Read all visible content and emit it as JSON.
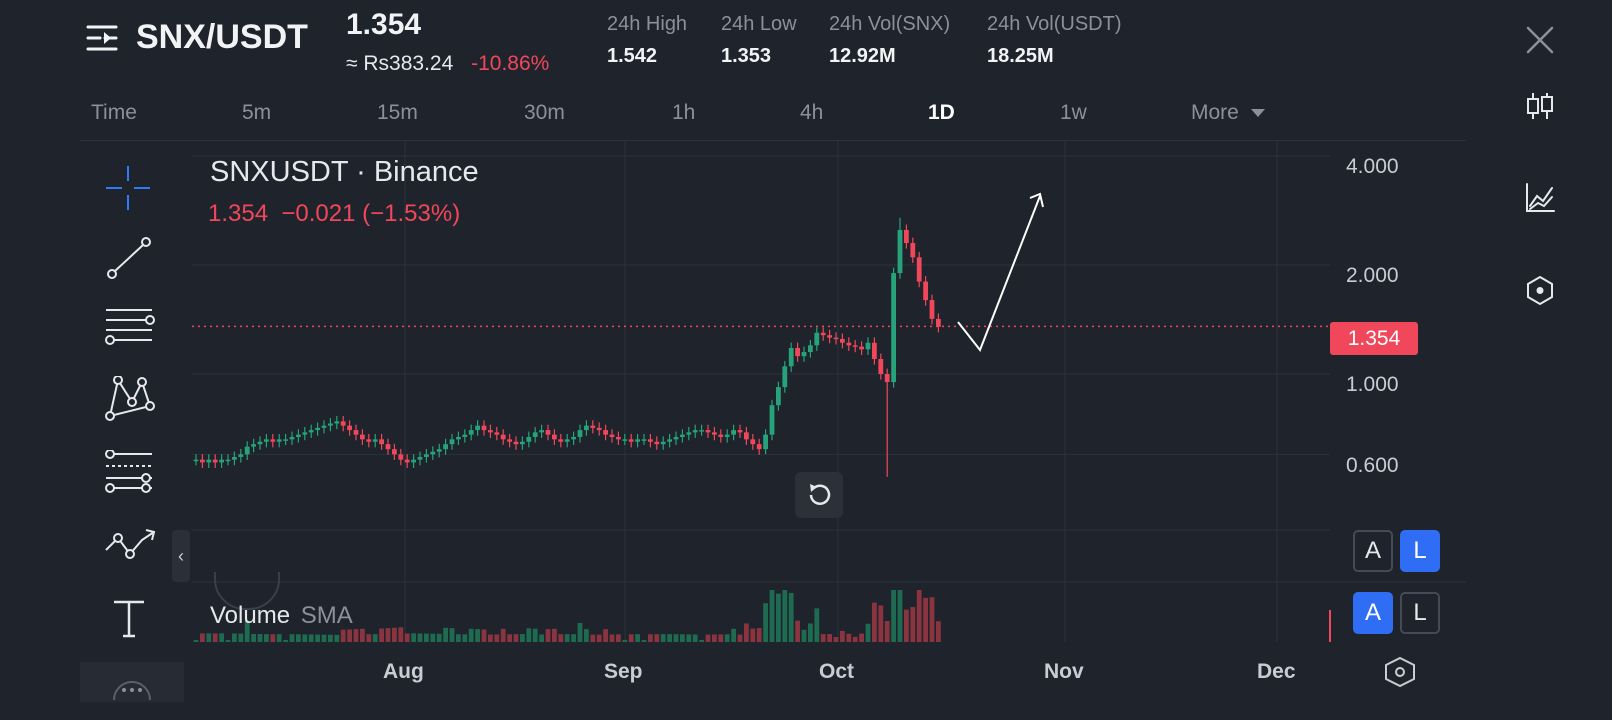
{
  "header": {
    "pair": "SNX/USDT",
    "price": "1.354",
    "fiat": "≈ Rs383.24",
    "change": "-10.86%",
    "stats": [
      {
        "label": "24h High",
        "value": "1.542"
      },
      {
        "label": "24h Low",
        "value": "1.353"
      },
      {
        "label": "24h Vol(SNX)",
        "value": "12.92M"
      },
      {
        "label": "24h Vol(USDT)",
        "value": "18.25M"
      }
    ]
  },
  "timeframes": [
    "Time",
    "5m",
    "15m",
    "30m",
    "1h",
    "4h",
    "1D",
    "1w",
    "More"
  ],
  "active_timeframe": "1D",
  "legend": {
    "symbol": "SNXUSDT · Binance",
    "ohlc": "1.354  −0.021 (−1.53%)"
  },
  "volume_legend": {
    "label": "Volume",
    "indicator": "SMA"
  },
  "price_axis": [
    "4.000",
    "2.000",
    "1.000",
    "0.600"
  ],
  "last_price_tag": "1.354",
  "x_axis": [
    "Aug",
    "Sep",
    "Oct",
    "Nov",
    "Dec"
  ],
  "scale_buttons": {
    "price": [
      {
        "label": "A",
        "active": false
      },
      {
        "label": "L",
        "active": true
      }
    ],
    "volume": [
      {
        "label": "A",
        "active": true
      },
      {
        "label": "L",
        "active": false
      }
    ]
  },
  "icons": {
    "menu": "menu-lines-icon",
    "close": "close-icon",
    "right_toolbar": [
      "candlestick-icon",
      "indicator-chart-icon",
      "hexagon-settings-icon"
    ],
    "left_toolbar": [
      "crosshair-icon",
      "trend-line-icon",
      "horizontal-lines-icon",
      "pattern-icon",
      "fib-icon",
      "path-icon",
      "text-icon",
      "more-icon"
    ]
  },
  "colors": {
    "background": "#1f232b",
    "up": "#26a37a",
    "down": "#f0475a",
    "accent": "#2f6df5"
  },
  "chart_data": {
    "type": "candlestick",
    "scale": "log",
    "ylim": [
      0.45,
      4.3
    ],
    "x_range": [
      "Jul 1",
      "Dec 5"
    ],
    "x_ticks": [
      "Aug",
      "Sep",
      "Oct",
      "Nov",
      "Dec"
    ],
    "y_ticks": [
      4.0,
      2.0,
      1.0,
      0.6
    ],
    "last_price": 1.354,
    "series": [
      {
        "name": "SNXUSDT",
        "close": [
          0.58,
          0.57,
          0.58,
          0.57,
          0.58,
          0.58,
          0.59,
          0.6,
          0.63,
          0.64,
          0.65,
          0.66,
          0.65,
          0.66,
          0.66,
          0.67,
          0.68,
          0.69,
          0.7,
          0.71,
          0.72,
          0.73,
          0.74,
          0.72,
          0.7,
          0.68,
          0.66,
          0.65,
          0.66,
          0.64,
          0.62,
          0.6,
          0.58,
          0.57,
          0.58,
          0.59,
          0.6,
          0.61,
          0.62,
          0.64,
          0.66,
          0.67,
          0.68,
          0.7,
          0.72,
          0.7,
          0.69,
          0.68,
          0.66,
          0.65,
          0.64,
          0.65,
          0.67,
          0.69,
          0.7,
          0.68,
          0.66,
          0.65,
          0.66,
          0.67,
          0.7,
          0.72,
          0.71,
          0.7,
          0.68,
          0.67,
          0.66,
          0.66,
          0.65,
          0.66,
          0.66,
          0.65,
          0.64,
          0.65,
          0.66,
          0.67,
          0.68,
          0.69,
          0.7,
          0.7,
          0.69,
          0.68,
          0.67,
          0.68,
          0.7,
          0.69,
          0.66,
          0.64,
          0.62,
          0.68,
          0.82,
          0.92,
          1.05,
          1.18,
          1.12,
          1.15,
          1.2,
          1.3,
          1.28,
          1.26,
          1.25,
          1.22,
          1.2,
          1.19,
          1.17,
          1.22,
          1.1,
          1.0,
          0.95,
          1.9,
          2.5,
          2.3,
          2.1,
          1.8,
          1.6,
          1.42,
          1.35
        ]
      }
    ],
    "volume_labels": [
      "Volume",
      "SMA"
    ]
  }
}
